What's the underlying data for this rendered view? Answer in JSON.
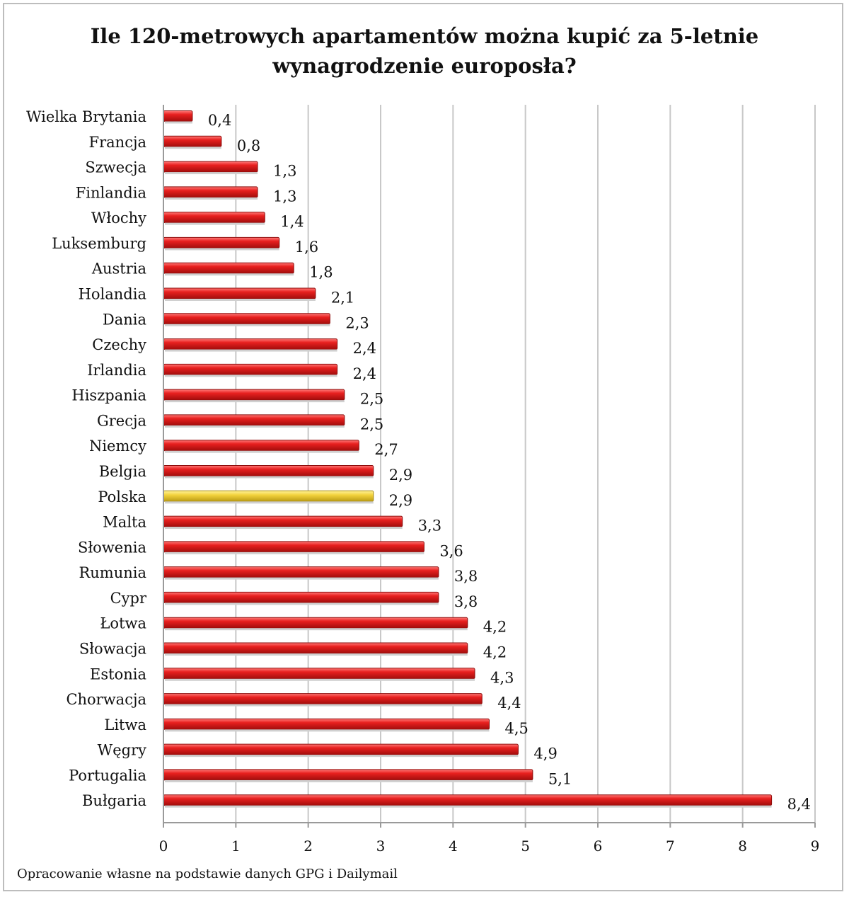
{
  "chart_data": {
    "type": "bar",
    "orientation": "horizontal",
    "title": "Ile 120-metrowych apartamentów można kupić za 5-letnie wynagrodzenie europosła?",
    "title_lines": [
      "Ile 120-metrowych apartamentów można kupić za 5-letnie",
      "wynagrodzenie europosła?"
    ],
    "categories": [
      "Wielka Brytania",
      "Francja",
      "Szwecja",
      "Finlandia",
      "Włochy",
      "Luksemburg",
      "Austria",
      "Holandia",
      "Dania",
      "Czechy",
      "Irlandia",
      "Hiszpania",
      "Grecja",
      "Niemcy",
      "Belgia",
      "Polska",
      "Malta",
      "Słowenia",
      "Rumunia",
      "Cypr",
      "Łotwa",
      "Słowacja",
      "Estonia",
      "Chorwacja",
      "Litwa",
      "Węgry",
      "Portugalia",
      "Bułgaria"
    ],
    "values": [
      0.4,
      0.8,
      1.3,
      1.3,
      1.4,
      1.6,
      1.8,
      2.1,
      2.3,
      2.4,
      2.4,
      2.5,
      2.5,
      2.7,
      2.9,
      2.9,
      3.3,
      3.6,
      3.8,
      3.8,
      4.2,
      4.2,
      4.3,
      4.4,
      4.5,
      4.9,
      5.1,
      8.4
    ],
    "value_labels": [
      "0,4",
      "0,8",
      "1,3",
      "1,3",
      "1,4",
      "1,6",
      "1,8",
      "2,1",
      "2,3",
      "2,4",
      "2,4",
      "2,5",
      "2,5",
      "2,7",
      "2,9",
      "2,9",
      "3,3",
      "3,6",
      "3,8",
      "3,8",
      "4,2",
      "4,2",
      "4,3",
      "4,4",
      "4,5",
      "4,9",
      "5,1",
      "8,4"
    ],
    "highlight_category": "Polska",
    "xlim": [
      0,
      9
    ],
    "xticks": [
      "0",
      "1",
      "2",
      "3",
      "4",
      "5",
      "6",
      "7",
      "8",
      "9"
    ],
    "grid": true,
    "legend": "none",
    "xlabel": "",
    "ylabel": "",
    "colors": {
      "bar": "#e8201f",
      "bar_highlight": "#f2d23c",
      "grid": "#c8c8c8"
    }
  },
  "source_note": "Opracowanie własne na podstawie danych GPG i Dailymail"
}
